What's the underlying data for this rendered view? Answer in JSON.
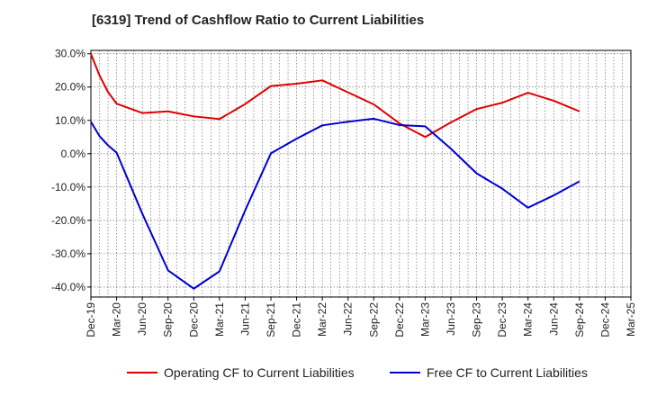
{
  "title": "[6319]  Trend of Cashflow Ratio to Current Liabilities",
  "chart_data": {
    "type": "line",
    "title": "[6319]  Trend of Cashflow Ratio to Current Liabilities",
    "xlabel": "",
    "ylabel": "",
    "x_ticks": [
      "Dec-19",
      "Mar-20",
      "Jun-20",
      "Sep-20",
      "Dec-20",
      "Mar-21",
      "Jun-21",
      "Sep-21",
      "Dec-21",
      "Mar-22",
      "Jun-22",
      "Sep-22",
      "Dec-22",
      "Mar-23",
      "Jun-23",
      "Sep-23",
      "Dec-23",
      "Mar-24",
      "Jun-24",
      "Sep-24",
      "Dec-24",
      "Mar-25"
    ],
    "y_ticks": [
      "30.0%",
      "20.0%",
      "10.0%",
      "0.0%",
      "-10.0%",
      "-20.0%",
      "-30.0%",
      "-40.0%"
    ],
    "y_tick_values": [
      30,
      20,
      10,
      0,
      -10,
      -20,
      -30,
      -40
    ],
    "ylim": [
      -43,
      31
    ],
    "x_range": [
      "Dec-19",
      "Mar-25"
    ],
    "grid": true,
    "grid_style": "dotted",
    "legend_position": "bottom",
    "series": [
      {
        "name": "Operating CF to Current Liabilities",
        "color": "#e00000",
        "points": [
          [
            "Dec-19",
            30.0
          ],
          [
            "Jan-20",
            23.5
          ],
          [
            "Feb-20",
            18.5
          ],
          [
            "Mar-20",
            15.0
          ],
          [
            "Jun-20",
            12.2
          ],
          [
            "Sep-20",
            12.7
          ],
          [
            "Dec-20",
            11.2
          ],
          [
            "Mar-21",
            10.4
          ],
          [
            "Jun-21",
            14.9
          ],
          [
            "Sep-21",
            20.3
          ],
          [
            "Dec-21",
            21.0
          ],
          [
            "Mar-22",
            22.0
          ],
          [
            "Jun-22",
            18.4
          ],
          [
            "Sep-22",
            14.8
          ],
          [
            "Dec-22",
            9.1
          ],
          [
            "Mar-23",
            5.0
          ],
          [
            "Jun-23",
            9.4
          ],
          [
            "Sep-23",
            13.4
          ],
          [
            "Dec-23",
            15.3
          ],
          [
            "Mar-24",
            18.3
          ],
          [
            "Jun-24",
            15.9
          ],
          [
            "Sep-24",
            12.7
          ]
        ]
      },
      {
        "name": "Free CF to Current Liabilities",
        "color": "#0000d0",
        "points": [
          [
            "Dec-19",
            9.6
          ],
          [
            "Jan-20",
            5.3
          ],
          [
            "Feb-20",
            2.5
          ],
          [
            "Mar-20",
            0.3
          ],
          [
            "Jun-20",
            -18.0
          ],
          [
            "Sep-20",
            -35.0
          ],
          [
            "Dec-20",
            -40.5
          ],
          [
            "Mar-21",
            -35.3
          ],
          [
            "Jun-21",
            -17.0
          ],
          [
            "Sep-21",
            0.1
          ],
          [
            "Dec-21",
            4.5
          ],
          [
            "Mar-22",
            8.5
          ],
          [
            "Jun-22",
            9.6
          ],
          [
            "Sep-22",
            10.5
          ],
          [
            "Dec-22",
            8.6
          ],
          [
            "Mar-23",
            8.2
          ],
          [
            "Jun-23",
            1.5
          ],
          [
            "Sep-23",
            -5.9
          ],
          [
            "Dec-23",
            -10.5
          ],
          [
            "Mar-24",
            -16.2
          ],
          [
            "Jun-24",
            -12.5
          ],
          [
            "Sep-24",
            -8.3
          ]
        ]
      }
    ]
  }
}
